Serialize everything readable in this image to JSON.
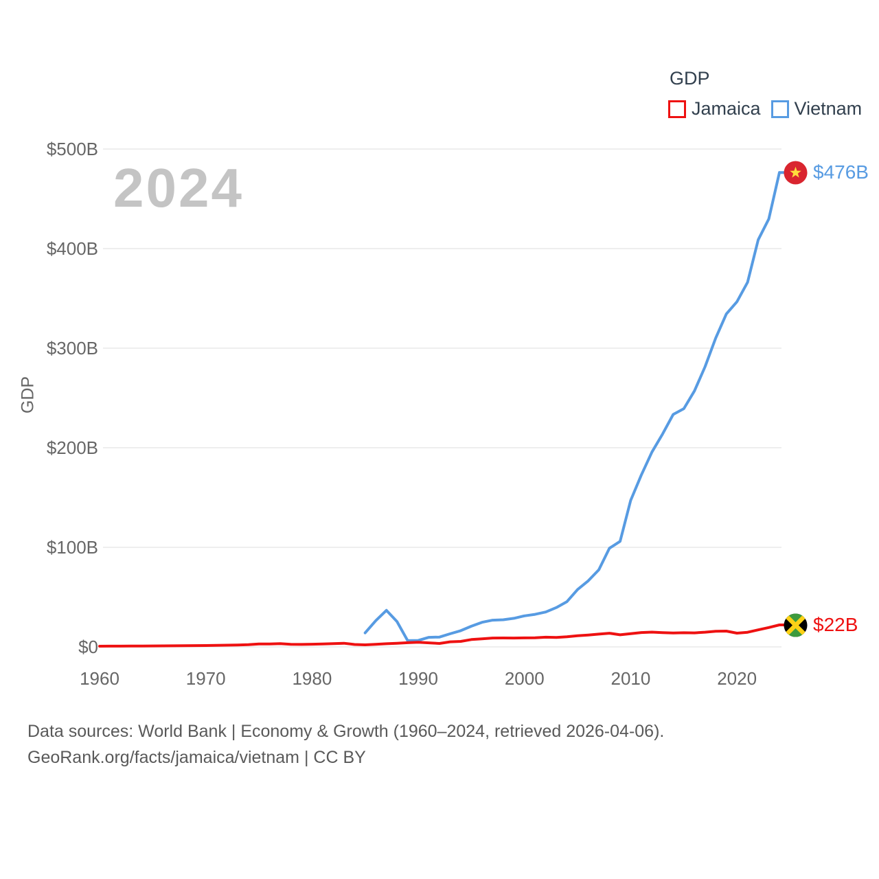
{
  "watermark": "2024",
  "footer": {
    "line1": "Data sources: World Bank | Economy & Growth (1960–2024, retrieved 2026-04-06).",
    "line2": "GeoRank.org/facts/jamaica/vietnam | CC BY"
  },
  "colors": {
    "jamaica": "#EE1111",
    "vietnam": "#579BE2",
    "legend_text": "#32404E",
    "axis_text": "#666666",
    "gridline": "#ECECEC",
    "watermark": "#C4C4C4",
    "footer_text": "#595959"
  },
  "chart_data": {
    "type": "line",
    "title": "GDP",
    "xlabel": "",
    "ylabel": "GDP",
    "y_unit": "billions of USD",
    "grid": "horizontal",
    "legend_position": "top-right",
    "x_range": [
      1960,
      2024
    ],
    "y_range": [
      0,
      500
    ],
    "x_step": 1,
    "x_ticks": [
      1960,
      1970,
      1980,
      1990,
      2000,
      2010,
      2020
    ],
    "y_ticks": [
      {
        "value": 0,
        "label": "$0"
      },
      {
        "value": 100,
        "label": "$100B"
      },
      {
        "value": 200,
        "label": "$200B"
      },
      {
        "value": 300,
        "label": "$300B"
      },
      {
        "value": 400,
        "label": "$400B"
      },
      {
        "value": 500,
        "label": "$500B"
      }
    ],
    "series": [
      {
        "name": "Jamaica",
        "color": "#EE1111",
        "flag_icon": "jamaica-flag-icon",
        "start_year": 1960,
        "end_label": "$22B",
        "values": [
          0.7,
          0.75,
          0.78,
          0.83,
          0.9,
          0.97,
          1.04,
          1.08,
          1.17,
          1.29,
          1.41,
          1.54,
          1.71,
          1.87,
          2.24,
          2.87,
          2.97,
          3.22,
          2.63,
          2.51,
          2.68,
          2.98,
          3.28,
          3.67,
          2.42,
          2.1,
          2.63,
          3.14,
          3.64,
          4.24,
          4.59,
          4.08,
          3.45,
          5.11,
          5.54,
          7.4,
          8.07,
          8.88,
          8.99,
          8.91,
          9.01,
          9.1,
          9.69,
          9.42,
          10.17,
          11.21,
          11.9,
          12.85,
          13.69,
          12.11,
          13.23,
          14.42,
          14.8,
          14.26,
          13.9,
          14.19,
          14.06,
          14.77,
          15.71,
          15.83,
          13.81,
          14.66,
          17.1,
          19.42,
          22.04
        ]
      },
      {
        "name": "Vietnam",
        "color": "#579BE2",
        "flag_icon": "vietnam-flag-icon",
        "start_year": 1985,
        "end_label": "$476B",
        "values": [
          14.09,
          26.34,
          36.66,
          25.42,
          6.29,
          6.47,
          9.61,
          9.87,
          13.18,
          16.29,
          20.74,
          24.66,
          26.84,
          27.21,
          28.68,
          31.17,
          32.69,
          35.06,
          39.55,
          45.43,
          57.63,
          66.37,
          77.41,
          99.13,
          106.01,
          147.2,
          172.6,
          195.7,
          213.7,
          233.45,
          239.26,
          257.1,
          281.35,
          310.11,
          334.37,
          346.62,
          366.14,
          408.8,
          429.72,
          476.4
        ]
      }
    ]
  }
}
